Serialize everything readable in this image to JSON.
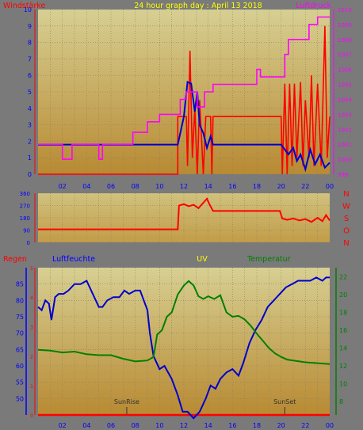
{
  "chart_data": [
    {
      "type": "line",
      "title": "24 hour graph day : April 13 2018",
      "left_axis_label": "Windstärke",
      "right_axis_label": "Luftdruck",
      "x_ticks": [
        "02",
        "04",
        "06",
        "08",
        "10",
        "12",
        "14",
        "16",
        "18",
        "20",
        "22",
        "00"
      ],
      "left_ticks": [
        "0",
        "1",
        "2",
        "3",
        "4",
        "5",
        "6",
        "7",
        "8",
        "9",
        "10"
      ],
      "right_ticks": [
        "999",
        "1000",
        "1001",
        "1002",
        "1003",
        "1004",
        "1005",
        "1006",
        "1007",
        "1008",
        "1009",
        "1010"
      ],
      "left_range": [
        0,
        10
      ],
      "right_range": [
        999,
        1010
      ],
      "series": [
        {
          "key": "wind_gust",
          "color": "#ff0000",
          "points": [
            [
              0,
              0
            ],
            [
              11.5,
              0
            ],
            [
              11.5,
              3.5
            ],
            [
              12.2,
              3.5
            ],
            [
              12.3,
              0.5
            ],
            [
              12.5,
              7.5
            ],
            [
              12.7,
              1
            ],
            [
              12.9,
              4
            ],
            [
              13.1,
              0
            ],
            [
              13.3,
              4.5
            ],
            [
              13.6,
              0
            ],
            [
              13.8,
              3.5
            ],
            [
              14.2,
              3.5
            ],
            [
              14.3,
              0
            ],
            [
              14.4,
              3.5
            ],
            [
              20,
              3.5
            ],
            [
              20.1,
              0
            ],
            [
              20.3,
              5.5
            ],
            [
              20.5,
              0
            ],
            [
              20.7,
              5.5
            ],
            [
              20.9,
              0.5
            ],
            [
              21.1,
              5.5
            ],
            [
              21.3,
              1
            ],
            [
              21.6,
              5.6
            ],
            [
              21.8,
              0.5
            ],
            [
              22,
              4.5
            ],
            [
              22.3,
              1
            ],
            [
              22.5,
              6
            ],
            [
              22.7,
              0.5
            ],
            [
              23,
              5.5
            ],
            [
              23.3,
              0.5
            ],
            [
              23.6,
              9
            ],
            [
              23.8,
              1
            ],
            [
              24,
              3.5
            ]
          ]
        },
        {
          "key": "wind_avg",
          "color": "#0000cc",
          "points": [
            [
              0,
              1.8
            ],
            [
              11.5,
              1.8
            ],
            [
              12,
              3.5
            ],
            [
              12.3,
              5.6
            ],
            [
              12.6,
              5.5
            ],
            [
              12.9,
              3.8
            ],
            [
              13.1,
              5
            ],
            [
              13.3,
              3
            ],
            [
              13.6,
              2.5
            ],
            [
              13.9,
              1.6
            ],
            [
              14.2,
              2.3
            ],
            [
              14.4,
              1.8
            ],
            [
              20,
              1.8
            ],
            [
              20.3,
              1.5
            ],
            [
              20.6,
              1.2
            ],
            [
              21,
              1.6
            ],
            [
              21.3,
              0.8
            ],
            [
              21.6,
              1.2
            ],
            [
              22,
              0.3
            ],
            [
              22.4,
              1.5
            ],
            [
              22.8,
              0.6
            ],
            [
              23.2,
              1.2
            ],
            [
              23.6,
              0.4
            ],
            [
              24,
              0.7
            ]
          ]
        },
        {
          "key": "pressure",
          "color": "#ff00ff",
          "axis": "right",
          "points": [
            [
              0,
              1001
            ],
            [
              2,
              1001
            ],
            [
              2,
              1000
            ],
            [
              2.8,
              1000
            ],
            [
              2.8,
              1001
            ],
            [
              5,
              1001
            ],
            [
              5,
              1000
            ],
            [
              5.3,
              1000
            ],
            [
              5.3,
              1001
            ],
            [
              7.8,
              1001
            ],
            [
              7.8,
              1001.8
            ],
            [
              9,
              1001.8
            ],
            [
              9,
              1002.5
            ],
            [
              10,
              1002.5
            ],
            [
              10,
              1003
            ],
            [
              11.7,
              1003
            ],
            [
              11.7,
              1004
            ],
            [
              12.2,
              1004
            ],
            [
              12.2,
              1004.5
            ],
            [
              13.1,
              1004.5
            ],
            [
              13.1,
              1003.5
            ],
            [
              13.7,
              1003.5
            ],
            [
              13.7,
              1004.5
            ],
            [
              14.4,
              1004.5
            ],
            [
              14.4,
              1005
            ],
            [
              18,
              1005
            ],
            [
              18,
              1006
            ],
            [
              18.3,
              1006
            ],
            [
              18.3,
              1005.5
            ],
            [
              20.3,
              1005.5
            ],
            [
              20.3,
              1007
            ],
            [
              20.6,
              1007
            ],
            [
              20.6,
              1008
            ],
            [
              21.2,
              1008
            ],
            [
              21.2,
              1008
            ],
            [
              22.3,
              1008
            ],
            [
              22.3,
              1009
            ],
            [
              23,
              1009
            ],
            [
              23,
              1009.5
            ],
            [
              24,
              1009.5
            ]
          ]
        }
      ]
    },
    {
      "type": "line",
      "left_ticks": [
        "360",
        "270",
        "180",
        "90",
        "0"
      ],
      "right_labels": [
        "N",
        "W",
        "S",
        "O",
        "N"
      ],
      "left_range": [
        0,
        360
      ],
      "x_ticks": [
        "02",
        "04",
        "06",
        "08",
        "10",
        "12",
        "14",
        "16",
        "18",
        "20",
        "22",
        "00"
      ],
      "series": [
        {
          "key": "wind_dir",
          "color": "#ff0000",
          "points": [
            [
              0,
              95
            ],
            [
              11.5,
              95
            ],
            [
              11.6,
              270
            ],
            [
              12,
              280
            ],
            [
              12.4,
              265
            ],
            [
              12.8,
              275
            ],
            [
              13.2,
              250
            ],
            [
              13.6,
              290
            ],
            [
              13.9,
              320
            ],
            [
              14.1,
              280
            ],
            [
              14.4,
              230
            ],
            [
              14.5,
              230
            ],
            [
              19.9,
              230
            ],
            [
              20.1,
              175
            ],
            [
              20.5,
              165
            ],
            [
              21,
              175
            ],
            [
              21.5,
              160
            ],
            [
              22,
              170
            ],
            [
              22.5,
              150
            ],
            [
              23,
              180
            ],
            [
              23.4,
              155
            ],
            [
              23.7,
              200
            ],
            [
              24,
              160
            ]
          ]
        }
      ]
    },
    {
      "type": "line",
      "header_labels": {
        "rain": "Regen",
        "humidity": "Luftfeuchte",
        "uv": "UV",
        "temperature": "Temperatur"
      },
      "left_ticks": [
        "0",
        "1",
        "2",
        "3",
        "4",
        "5"
      ],
      "humidity_ticks": [
        "50",
        "55",
        "60",
        "65",
        "70",
        "75",
        "80",
        "85"
      ],
      "temp_ticks": [
        "8",
        "10",
        "12",
        "14",
        "16",
        "18",
        "20",
        "22"
      ],
      "x_ticks": [
        "02",
        "04",
        "06",
        "08",
        "10",
        "12",
        "14",
        "16",
        "18",
        "20",
        "22",
        "00"
      ],
      "annotations": [
        "SunRise",
        "SunSet"
      ],
      "sunrise_hour": 7.3,
      "sunset_hour": 20.3,
      "humidity_range": [
        45,
        90
      ],
      "temp_range": [
        6.5,
        23
      ],
      "series": [
        {
          "key": "rain",
          "color": "#ff0000",
          "values_constant": 0
        },
        {
          "key": "humidity",
          "color": "#0000cc",
          "points": [
            [
              0,
              78
            ],
            [
              0.3,
              77
            ],
            [
              0.6,
              80
            ],
            [
              0.9,
              79
            ],
            [
              1.1,
              74
            ],
            [
              1.4,
              81
            ],
            [
              1.7,
              82
            ],
            [
              2.1,
              82
            ],
            [
              2.5,
              83
            ],
            [
              3,
              85
            ],
            [
              3.5,
              85
            ],
            [
              4,
              86
            ],
            [
              4.5,
              82
            ],
            [
              5,
              78
            ],
            [
              5.3,
              78
            ],
            [
              5.7,
              80
            ],
            [
              6.2,
              81
            ],
            [
              6.7,
              81
            ],
            [
              7.1,
              83
            ],
            [
              7.5,
              82
            ],
            [
              8,
              83
            ],
            [
              8.4,
              83
            ],
            [
              8.7,
              80
            ],
            [
              9,
              77
            ],
            [
              9.2,
              70
            ],
            [
              9.5,
              63
            ],
            [
              10,
              59
            ],
            [
              10.4,
              60
            ],
            [
              11,
              56
            ],
            [
              11.5,
              51
            ],
            [
              11.9,
              46
            ],
            [
              12.3,
              46
            ],
            [
              12.8,
              44
            ],
            [
              13.3,
              46
            ],
            [
              13.8,
              50
            ],
            [
              14.2,
              54
            ],
            [
              14.6,
              53
            ],
            [
              15,
              56
            ],
            [
              15.5,
              58
            ],
            [
              16,
              59
            ],
            [
              16.5,
              57
            ],
            [
              16.9,
              61
            ],
            [
              17.4,
              67
            ],
            [
              17.9,
              71
            ],
            [
              18.4,
              74
            ],
            [
              18.9,
              78
            ],
            [
              19.4,
              80
            ],
            [
              19.9,
              82
            ],
            [
              20.4,
              84
            ],
            [
              20.9,
              85
            ],
            [
              21.4,
              86
            ],
            [
              21.9,
              86
            ],
            [
              22.4,
              86
            ],
            [
              22.9,
              87
            ],
            [
              23.4,
              86
            ],
            [
              23.7,
              87
            ],
            [
              24,
              87
            ]
          ]
        },
        {
          "key": "temperature",
          "color": "#008000",
          "axis": "temp",
          "points": [
            [
              0,
              13.8
            ],
            [
              1,
              13.7
            ],
            [
              2,
              13.5
            ],
            [
              3,
              13.6
            ],
            [
              4,
              13.3
            ],
            [
              5,
              13.2
            ],
            [
              6,
              13.2
            ],
            [
              7,
              12.8
            ],
            [
              8,
              12.5
            ],
            [
              9,
              12.6
            ],
            [
              9.5,
              13
            ],
            [
              9.8,
              15.5
            ],
            [
              10.2,
              16
            ],
            [
              10.6,
              17.5
            ],
            [
              11,
              18
            ],
            [
              11.5,
              20
            ],
            [
              12,
              21
            ],
            [
              12.4,
              21.5
            ],
            [
              12.8,
              21
            ],
            [
              13.2,
              19.8
            ],
            [
              13.6,
              19.5
            ],
            [
              14,
              19.8
            ],
            [
              14.5,
              19.5
            ],
            [
              15,
              19.9
            ],
            [
              15.5,
              18
            ],
            [
              16,
              17.5
            ],
            [
              16.5,
              17.6
            ],
            [
              17,
              17.2
            ],
            [
              17.5,
              16.5
            ],
            [
              18,
              15.6
            ],
            [
              18.5,
              14.8
            ],
            [
              19,
              14
            ],
            [
              19.5,
              13.4
            ],
            [
              20,
              13
            ],
            [
              20.5,
              12.7
            ],
            [
              21,
              12.6
            ],
            [
              22,
              12.4
            ],
            [
              23,
              12.3
            ],
            [
              24,
              12.2
            ]
          ]
        }
      ]
    }
  ]
}
